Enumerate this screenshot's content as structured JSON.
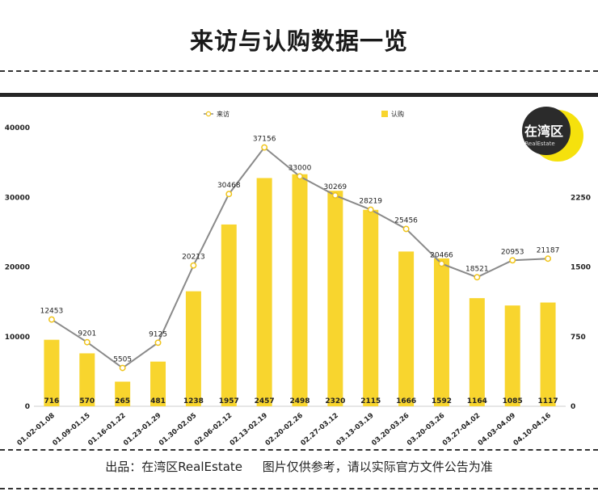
{
  "page": {
    "title": "来访与认购数据一览",
    "footer_source": "出品：在湾区RealEstate",
    "footer_note": "图片仅供参考，请以实际官方文件公告为准"
  },
  "logo": {
    "main": "在湾区",
    "sub": "RealEstate",
    "accent": "#f5e10d",
    "dark": "#2b2b2b"
  },
  "colors": {
    "bar": "#f8d52e",
    "line": "#8a8a8a",
    "marker_fill": "#ffffff",
    "marker_stroke": "#f0c419"
  },
  "chart_data": {
    "type": "bar+line",
    "categories": [
      "01.02-01.08",
      "01.09-01.15",
      "01.16-01.22",
      "01.23-01.29",
      "01.30-02.05",
      "02.06-02.12",
      "02.13-02.19",
      "02.20-02.26",
      "02.27-03.12",
      "03.13-03.19",
      "03.20-03.26",
      "03.20-03.26",
      "03.27-04.02",
      "04.03-04.09",
      "04.10-04.16"
    ],
    "series": [
      {
        "name": "来访",
        "type": "line",
        "axis": "left",
        "values": [
          12453,
          9201,
          5505,
          9125,
          20213,
          30468,
          37156,
          33000,
          30269,
          28219,
          25456,
          20466,
          18521,
          20953,
          21187
        ]
      },
      {
        "name": "认购",
        "type": "bar",
        "axis": "right",
        "values": [
          716,
          570,
          265,
          481,
          1238,
          1957,
          2457,
          2498,
          2320,
          2115,
          1666,
          1592,
          1164,
          1085,
          1117
        ]
      }
    ],
    "left_axis": {
      "ylim": [
        0,
        40000
      ],
      "ticks": [
        "0",
        "10000",
        "20000",
        "30000",
        "40000"
      ]
    },
    "right_axis": {
      "ylim": [
        0,
        3000
      ],
      "ticks": [
        "0",
        "750",
        "1500",
        "2250"
      ]
    },
    "legend": {
      "position": "top",
      "items": [
        "来访",
        "认购"
      ]
    }
  }
}
